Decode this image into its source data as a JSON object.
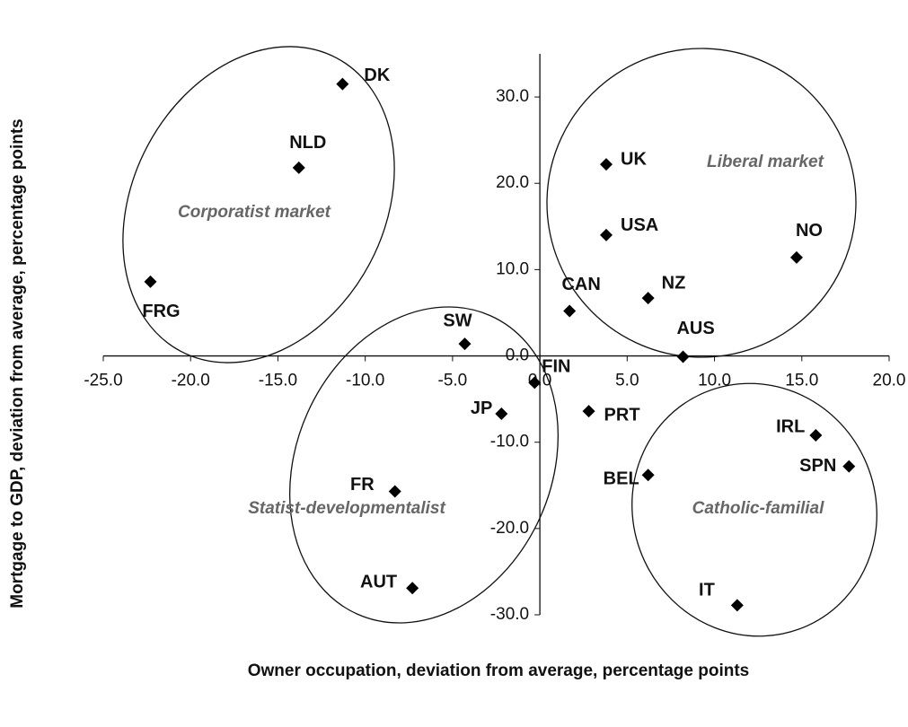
{
  "chart_data": {
    "type": "scatter",
    "x_label": "Owner occupation, deviation from average, percentage points",
    "y_label": "Mortgage to GDP, deviation from average, percentage points",
    "labels": [
      "DK",
      "NLD",
      "FRG",
      "SW",
      "FIN",
      "JP",
      "FR",
      "AUT",
      "UK",
      "USA",
      "CAN",
      "NZ",
      "AUS",
      "NO",
      "PRT",
      "BEL",
      "IRL",
      "SPN",
      "IT"
    ],
    "x": [
      -11.3,
      -13.8,
      -22.3,
      -4.3,
      -0.3,
      -2.2,
      -8.3,
      -7.3,
      3.8,
      3.8,
      1.7,
      6.2,
      8.2,
      14.7,
      2.8,
      6.2,
      15.8,
      17.7,
      11.3
    ],
    "y": [
      31.5,
      21.8,
      8.6,
      1.4,
      -3.1,
      -6.7,
      -15.7,
      -26.9,
      22.2,
      14.0,
      5.2,
      6.7,
      -0.1,
      11.4,
      -6.4,
      -13.8,
      -9.2,
      -12.8,
      -28.9
    ],
    "color": "#000000",
    "annotations": [
      "Corporatist market",
      "Liberal market",
      "Statist-developmentalist",
      "Catholic-familial"
    ],
    "xlim": [
      -25,
      20
    ],
    "ylim": [
      -30,
      35
    ],
    "xticks": [
      {
        "value": -25,
        "label": "-25.0"
      },
      {
        "value": -20,
        "label": "-20.0"
      },
      {
        "value": -15,
        "label": "-15.0"
      },
      {
        "value": -10,
        "label": "-10.0"
      },
      {
        "value": -5,
        "label": "-5.0"
      },
      {
        "value": 0,
        "label": "0.0"
      },
      {
        "value": 5,
        "label": "5.0"
      },
      {
        "value": 10,
        "label": "10.0"
      },
      {
        "value": 15,
        "label": "15.0"
      },
      {
        "value": 20,
        "label": "20.0"
      }
    ],
    "yticks": [
      {
        "value": -30,
        "label": "-30.0"
      },
      {
        "value": -20,
        "label": "-20.0"
      },
      {
        "value": -10,
        "label": "-10.0"
      },
      {
        "value": 0,
        "label": "0.0"
      },
      {
        "value": 10,
        "label": "10.0"
      },
      {
        "value": 20,
        "label": "20.0"
      },
      {
        "value": 30,
        "label": "30.0"
      }
    ]
  }
}
